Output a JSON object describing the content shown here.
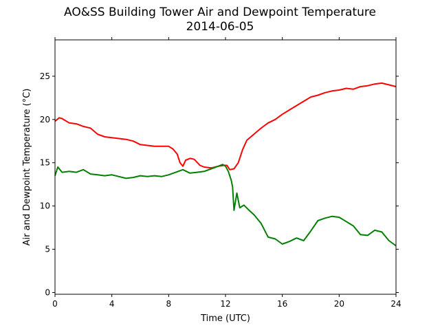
{
  "chart_data": {
    "type": "line",
    "title": "AO&SS Building Tower Air and Dewpoint Temperature",
    "subtitle": "2014-06-05",
    "xlabel": "Time (UTC)",
    "ylabel": "Air and Dewpoint Temperature (°C)",
    "xlim": [
      0,
      24
    ],
    "ylim": [
      -0.2,
      29.2
    ],
    "xticks": [
      0,
      4,
      8,
      12,
      16,
      20,
      24
    ],
    "yticks": [
      0,
      5,
      10,
      15,
      20,
      25
    ],
    "grid": false,
    "legend": "none",
    "series": [
      {
        "color": "#ff0000",
        "x": [
          0,
          0.3,
          0.5,
          1,
          1.5,
          2,
          2.5,
          3,
          3.5,
          4,
          4.5,
          5,
          5.5,
          6,
          6.5,
          7,
          7.5,
          8,
          8.3,
          8.6,
          8.8,
          9.0,
          9.2,
          9.5,
          9.8,
          10.2,
          10.5,
          11.0,
          11.5,
          11.9,
          12.1,
          12.3,
          12.6,
          12.9,
          13.2,
          13.5,
          14,
          14.5,
          15,
          15.5,
          16,
          16.5,
          17,
          17.5,
          18,
          18.5,
          19,
          19.5,
          20,
          20.5,
          21,
          21.5,
          22,
          22.5,
          23,
          23.5,
          24
        ],
        "values": [
          19.8,
          20.2,
          20.1,
          19.6,
          19.5,
          19.2,
          19.0,
          18.3,
          18.0,
          17.9,
          17.8,
          17.7,
          17.5,
          17.1,
          17.0,
          16.9,
          16.9,
          16.9,
          16.6,
          16.0,
          15.0,
          14.6,
          15.3,
          15.5,
          15.4,
          14.7,
          14.5,
          14.4,
          14.6,
          14.7,
          14.7,
          14.2,
          14.3,
          15.0,
          16.5,
          17.6,
          18.3,
          19.0,
          19.6,
          20.0,
          20.6,
          21.1,
          21.6,
          22.1,
          22.6,
          22.8,
          23.1,
          23.3,
          23.4,
          23.6,
          23.5,
          23.8,
          23.9,
          24.1,
          24.2,
          24.0,
          23.8
        ]
      },
      {
        "color": "#008000",
        "x": [
          0,
          0.2,
          0.5,
          1,
          1.5,
          2,
          2.5,
          3,
          3.5,
          4,
          4.5,
          5,
          5.5,
          6,
          6.5,
          7,
          7.5,
          8,
          8.5,
          9,
          9.5,
          10,
          10.5,
          11,
          11.5,
          11.8,
          12.0,
          12.2,
          12.4,
          12.5,
          12.6,
          12.8,
          13,
          13.3,
          13.6,
          14,
          14.5,
          15,
          15.5,
          16,
          16.5,
          17,
          17.5,
          18,
          18.5,
          19,
          19.5,
          20,
          20.5,
          21,
          21.5,
          22,
          22.5,
          23,
          23.5,
          24
        ],
        "values": [
          13.5,
          14.5,
          13.9,
          14.0,
          13.9,
          14.2,
          13.7,
          13.6,
          13.5,
          13.6,
          13.4,
          13.2,
          13.3,
          13.5,
          13.4,
          13.5,
          13.4,
          13.6,
          13.9,
          14.2,
          13.8,
          13.9,
          14.0,
          14.3,
          14.6,
          14.8,
          14.6,
          14.0,
          13.0,
          12.2,
          9.5,
          11.5,
          9.8,
          10.1,
          9.6,
          9.0,
          8.0,
          6.4,
          6.2,
          5.6,
          5.9,
          6.3,
          6.0,
          7.1,
          8.3,
          8.6,
          8.8,
          8.7,
          8.2,
          7.7,
          6.7,
          6.6,
          7.2,
          7.0,
          6.0,
          5.4
        ]
      }
    ]
  }
}
